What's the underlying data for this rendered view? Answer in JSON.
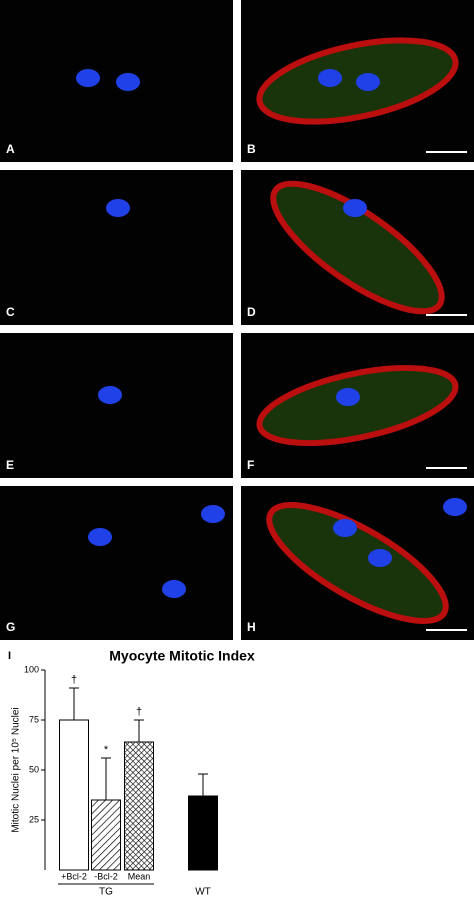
{
  "panels": [
    "A",
    "B",
    "C",
    "D",
    "E",
    "F",
    "G",
    "H"
  ],
  "chart_data": {
    "type": "bar",
    "panel_label": "I",
    "title": "Myocyte Mitotic Index",
    "y_label": "Mitotic Nuclei per 10⁵ Nuclei",
    "categories": [
      "+Bcl-2",
      "-Bcl-2",
      "Mean",
      "WT"
    ],
    "values": [
      75,
      35,
      64,
      37
    ],
    "errors": [
      16,
      21,
      11,
      11
    ],
    "value_labels": [
      "†",
      "*",
      "†",
      null
    ],
    "fills": [
      "white",
      "hatch",
      "crosshatch",
      "black"
    ],
    "group_label": "TG",
    "group_label_2": "WT",
    "ylim": [
      0,
      100
    ],
    "yticks": [
      25,
      50,
      75,
      100
    ]
  }
}
